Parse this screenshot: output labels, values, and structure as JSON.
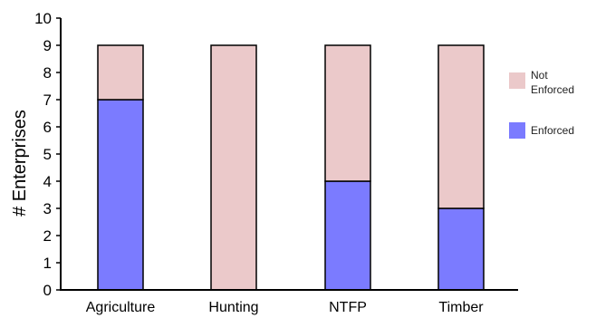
{
  "chart_data": {
    "type": "bar",
    "stacked": true,
    "title": "",
    "xlabel": "",
    "ylabel": "# Enterprises",
    "categories": [
      "Agriculture",
      "Hunting",
      "NTFP",
      "Timber"
    ],
    "series": [
      {
        "name": "Enforced",
        "values": [
          7,
          0,
          4,
          3
        ],
        "color": "#7b7bff"
      },
      {
        "name": "Not Enforced",
        "values": [
          2,
          9,
          5,
          6
        ],
        "color": "#ebc9ca"
      }
    ],
    "ylim": [
      0,
      10
    ],
    "yticks": [
      "0",
      "1",
      "2",
      "3",
      "4",
      "5",
      "6",
      "7",
      "8",
      "9",
      "10"
    ],
    "grid": false,
    "legend": {
      "placement": "right",
      "items": [
        {
          "label_lines": [
            "Not",
            "Enforced"
          ],
          "color": "#ebc9ca"
        },
        {
          "label_lines": [
            "Enforced"
          ],
          "color": "#7b7bff"
        }
      ]
    }
  }
}
